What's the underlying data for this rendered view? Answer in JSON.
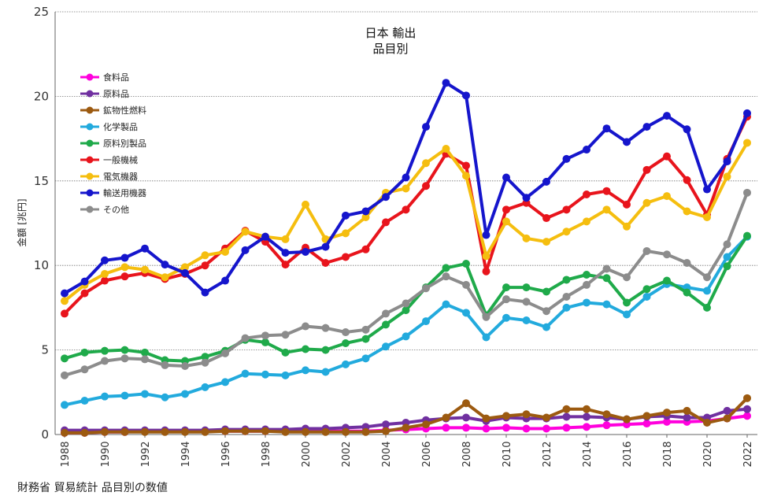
{
  "chart_data": {
    "type": "line",
    "title_line1": "日本 輸出",
    "title_line2": "品目別",
    "ylabel": "金額 [兆円]",
    "xlabel": "",
    "source_note": "財務省 貿易統計 品目別の数値",
    "ylim": [
      0,
      25
    ],
    "yticks": [
      0,
      5,
      10,
      15,
      20,
      25
    ],
    "xticks": [
      1988,
      1990,
      1992,
      1994,
      1996,
      1998,
      2000,
      2002,
      2004,
      2006,
      2008,
      2010,
      2012,
      2014,
      2016,
      2018,
      2020,
      2022
    ],
    "x": [
      1988,
      1989,
      1990,
      1991,
      1992,
      1993,
      1994,
      1995,
      1996,
      1997,
      1998,
      1999,
      2000,
      2001,
      2002,
      2003,
      2004,
      2005,
      2006,
      2007,
      2008,
      2009,
      2010,
      2011,
      2012,
      2013,
      2014,
      2015,
      2016,
      2017,
      2018,
      2019,
      2020,
      2021,
      2022
    ],
    "series": [
      {
        "name": "食料品",
        "color": "#ff00dd",
        "values": [
          0.1,
          0.1,
          0.15,
          0.15,
          0.2,
          0.2,
          0.2,
          0.2,
          0.2,
          0.2,
          0.2,
          0.2,
          0.2,
          0.2,
          0.2,
          0.2,
          0.25,
          0.3,
          0.35,
          0.4,
          0.4,
          0.35,
          0.4,
          0.35,
          0.35,
          0.4,
          0.45,
          0.55,
          0.6,
          0.65,
          0.75,
          0.75,
          0.8,
          0.95,
          1.1
        ]
      },
      {
        "name": "原料品",
        "color": "#7030a0",
        "values": [
          0.25,
          0.25,
          0.25,
          0.25,
          0.25,
          0.25,
          0.25,
          0.25,
          0.3,
          0.3,
          0.3,
          0.3,
          0.35,
          0.35,
          0.4,
          0.45,
          0.6,
          0.7,
          0.85,
          0.95,
          1.0,
          0.8,
          1.0,
          0.95,
          0.95,
          1.05,
          1.05,
          1.0,
          0.9,
          1.05,
          1.1,
          1.0,
          1.0,
          1.4,
          1.5
        ]
      },
      {
        "name": "鉱物性燃料",
        "color": "#9c5a10",
        "values": [
          0.1,
          0.1,
          0.15,
          0.15,
          0.15,
          0.15,
          0.15,
          0.15,
          0.2,
          0.2,
          0.2,
          0.15,
          0.15,
          0.15,
          0.15,
          0.15,
          0.2,
          0.4,
          0.6,
          1.0,
          1.85,
          0.95,
          1.1,
          1.2,
          1.0,
          1.5,
          1.5,
          1.2,
          0.9,
          1.1,
          1.3,
          1.4,
          0.7,
          0.95,
          2.15
        ]
      },
      {
        "name": "化学製品",
        "color": "#22aadd",
        "values": [
          1.75,
          2.0,
          2.25,
          2.3,
          2.4,
          2.2,
          2.4,
          2.8,
          3.1,
          3.6,
          3.55,
          3.5,
          3.8,
          3.7,
          4.15,
          4.5,
          5.2,
          5.8,
          6.7,
          7.7,
          7.2,
          5.75,
          6.9,
          6.75,
          6.35,
          7.5,
          7.8,
          7.7,
          7.1,
          8.15,
          8.9,
          8.7,
          8.5,
          10.5,
          11.7
        ]
      },
      {
        "name": "原料別製品",
        "color": "#1faa4a",
        "values": [
          4.5,
          4.85,
          4.95,
          5.0,
          4.85,
          4.4,
          4.35,
          4.6,
          4.95,
          5.6,
          5.45,
          4.85,
          5.05,
          5.0,
          5.4,
          5.65,
          6.5,
          7.35,
          8.7,
          9.85,
          10.1,
          7.05,
          8.7,
          8.7,
          8.45,
          9.15,
          9.45,
          9.25,
          7.8,
          8.6,
          9.1,
          8.4,
          7.5,
          9.95,
          11.75
        ]
      },
      {
        "name": "一般機械",
        "color": "#e8141c",
        "values": [
          7.15,
          8.35,
          9.1,
          9.35,
          9.55,
          9.2,
          9.5,
          10.0,
          11.0,
          12.05,
          11.4,
          10.05,
          11.05,
          10.15,
          10.5,
          10.95,
          12.55,
          13.3,
          14.7,
          16.6,
          15.9,
          9.65,
          13.3,
          13.7,
          12.8,
          13.3,
          14.2,
          14.4,
          13.6,
          15.65,
          16.45,
          15.05,
          13.0,
          16.3,
          18.8
        ]
      },
      {
        "name": "電気機器",
        "color": "#f5be0f",
        "values": [
          7.9,
          8.85,
          9.5,
          9.9,
          9.75,
          9.3,
          9.9,
          10.6,
          10.8,
          12.0,
          11.7,
          11.55,
          13.6,
          11.55,
          11.9,
          12.85,
          14.3,
          14.55,
          16.05,
          16.9,
          15.3,
          10.55,
          12.6,
          11.6,
          11.4,
          12.0,
          12.6,
          13.3,
          12.3,
          13.7,
          14.1,
          13.2,
          12.85,
          15.25,
          17.25
        ]
      },
      {
        "name": "輸送用機器",
        "color": "#1515cc",
        "values": [
          8.35,
          9.05,
          10.3,
          10.45,
          11.0,
          10.05,
          9.55,
          8.4,
          9.1,
          10.9,
          11.7,
          10.75,
          10.8,
          11.1,
          12.95,
          13.2,
          14.05,
          15.2,
          18.2,
          20.8,
          20.05,
          11.8,
          15.2,
          14.0,
          14.95,
          16.3,
          16.85,
          18.1,
          17.3,
          18.2,
          18.85,
          18.05,
          14.5,
          16.15,
          19.0
        ]
      },
      {
        "name": "その他",
        "color": "#8c8c8c",
        "values": [
          3.5,
          3.85,
          4.35,
          4.5,
          4.45,
          4.1,
          4.05,
          4.25,
          4.8,
          5.7,
          5.85,
          5.9,
          6.4,
          6.3,
          6.05,
          6.2,
          7.15,
          7.75,
          8.65,
          9.35,
          8.85,
          6.95,
          8.0,
          7.85,
          7.3,
          8.15,
          8.85,
          9.8,
          9.3,
          10.85,
          10.65,
          10.15,
          9.3,
          11.25,
          14.3
        ]
      }
    ]
  }
}
